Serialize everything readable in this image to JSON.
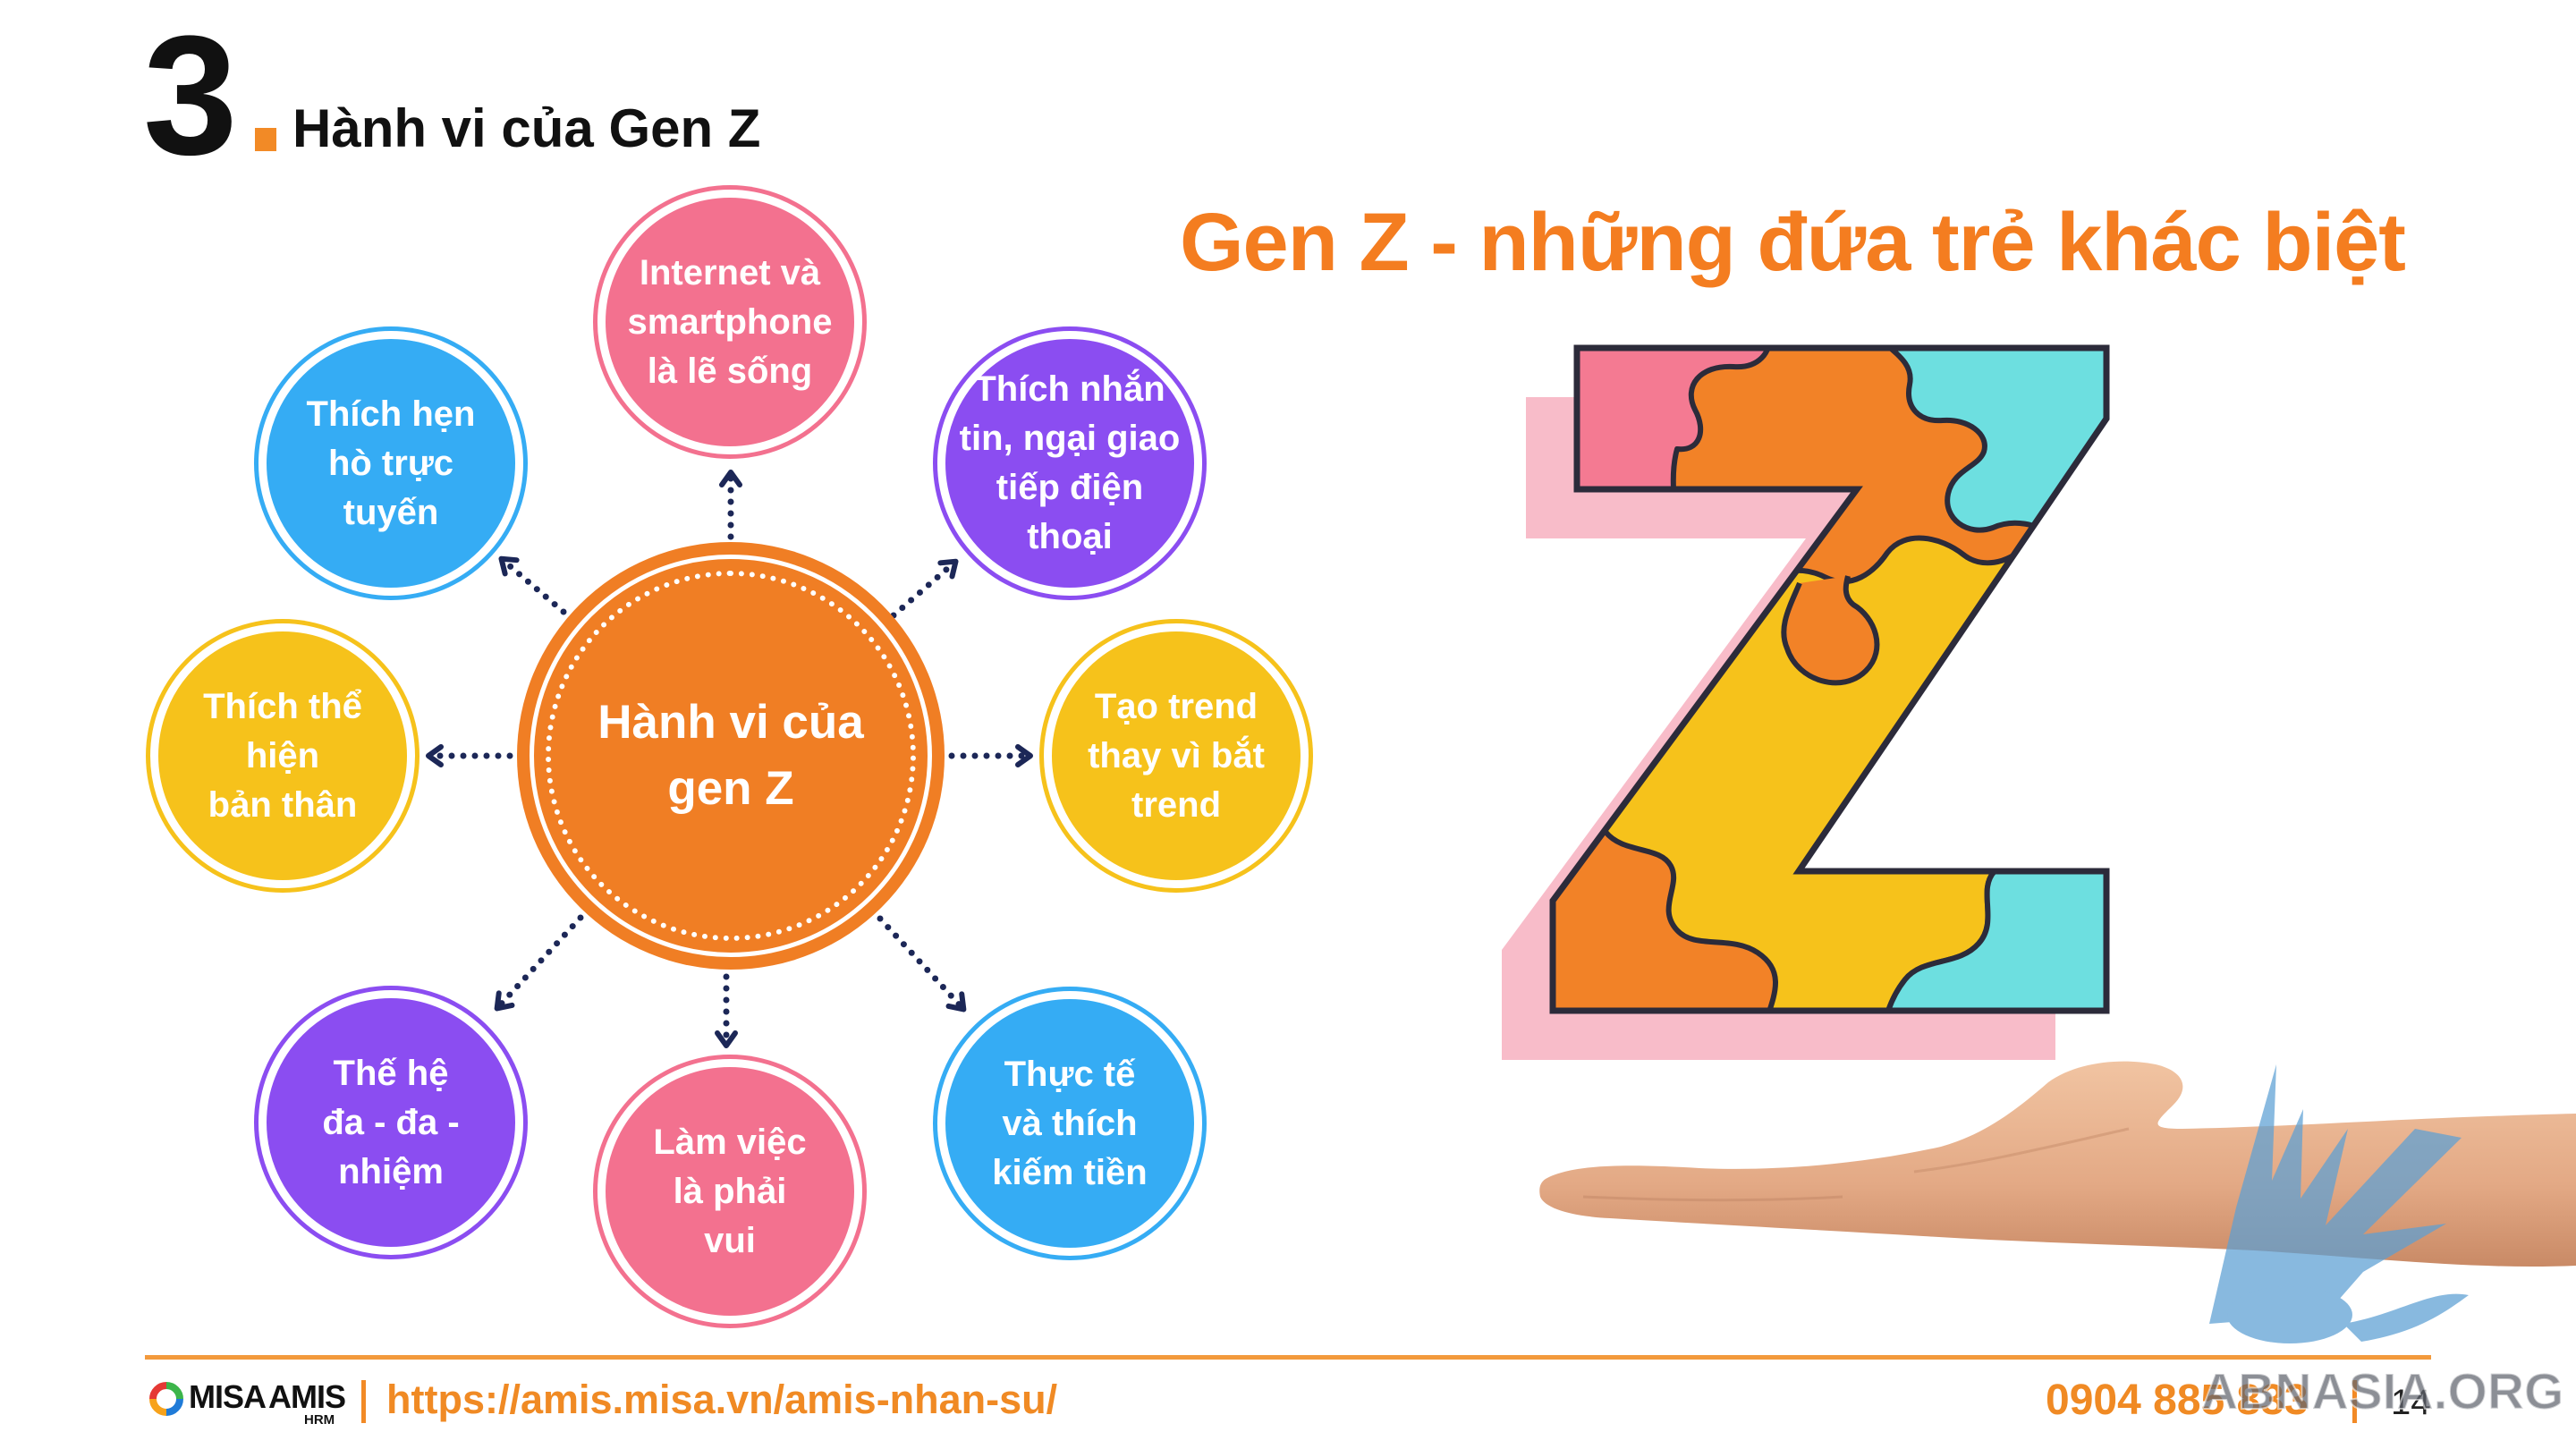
{
  "section": {
    "number": "3",
    "title": "Hành vi của Gen Z"
  },
  "headline": "Gen Z - những đứa trẻ khác biệt",
  "diagram": {
    "center": {
      "lines": [
        "Hành vi của",
        "gen Z"
      ],
      "color": "#f07e24"
    },
    "nodes": [
      {
        "lines": [
          "Internet và",
          "smartphone",
          "là lẽ sống"
        ],
        "color": "#f3718f"
      },
      {
        "lines": [
          "Thích nhắn",
          "tin, ngại giao",
          "tiếp điện",
          "thoại"
        ],
        "color": "#8b4df1"
      },
      {
        "lines": [
          "Tạo trend",
          "thay vì bắt",
          "trend"
        ],
        "color": "#f6c21b"
      },
      {
        "lines": [
          "Thực tế",
          "và thích",
          "kiếm tiền"
        ],
        "color": "#35acf4"
      },
      {
        "lines": [
          "Làm việc",
          "là phải",
          "vui"
        ],
        "color": "#f3718f"
      },
      {
        "lines": [
          "Thế hệ",
          "đa - đa -",
          "nhiệm"
        ],
        "color": "#8b4df1"
      },
      {
        "lines": [
          "Thích thể",
          "hiện",
          "bản thân"
        ],
        "color": "#f6c21b"
      },
      {
        "lines": [
          "Thích hẹn",
          "hò trực",
          "tuyến"
        ],
        "color": "#35acf4"
      }
    ],
    "arrow_color": "#1c2757"
  },
  "illustration": {
    "icon": "puzzle-z-icon",
    "hand_icon": "open-hand-icon",
    "puzzle_colors": [
      "#f28227",
      "#f6c21b",
      "#6ddfe0",
      "#f47a92"
    ]
  },
  "footer": {
    "logo_icon": "misa-ring-icon",
    "brand_left": "MISA",
    "brand_right": "AMIS",
    "brand_sub": "HRM",
    "url": "https://amis.misa.vn/amis-nhan-su/",
    "phone": "0904 885 833",
    "page_number": "14"
  },
  "watermark": {
    "text": "ABNASIA.ORG",
    "icon": "bird-icon"
  },
  "colors": {
    "accent": "#f28a26",
    "headline": "#f47d20",
    "text": "#111111"
  }
}
